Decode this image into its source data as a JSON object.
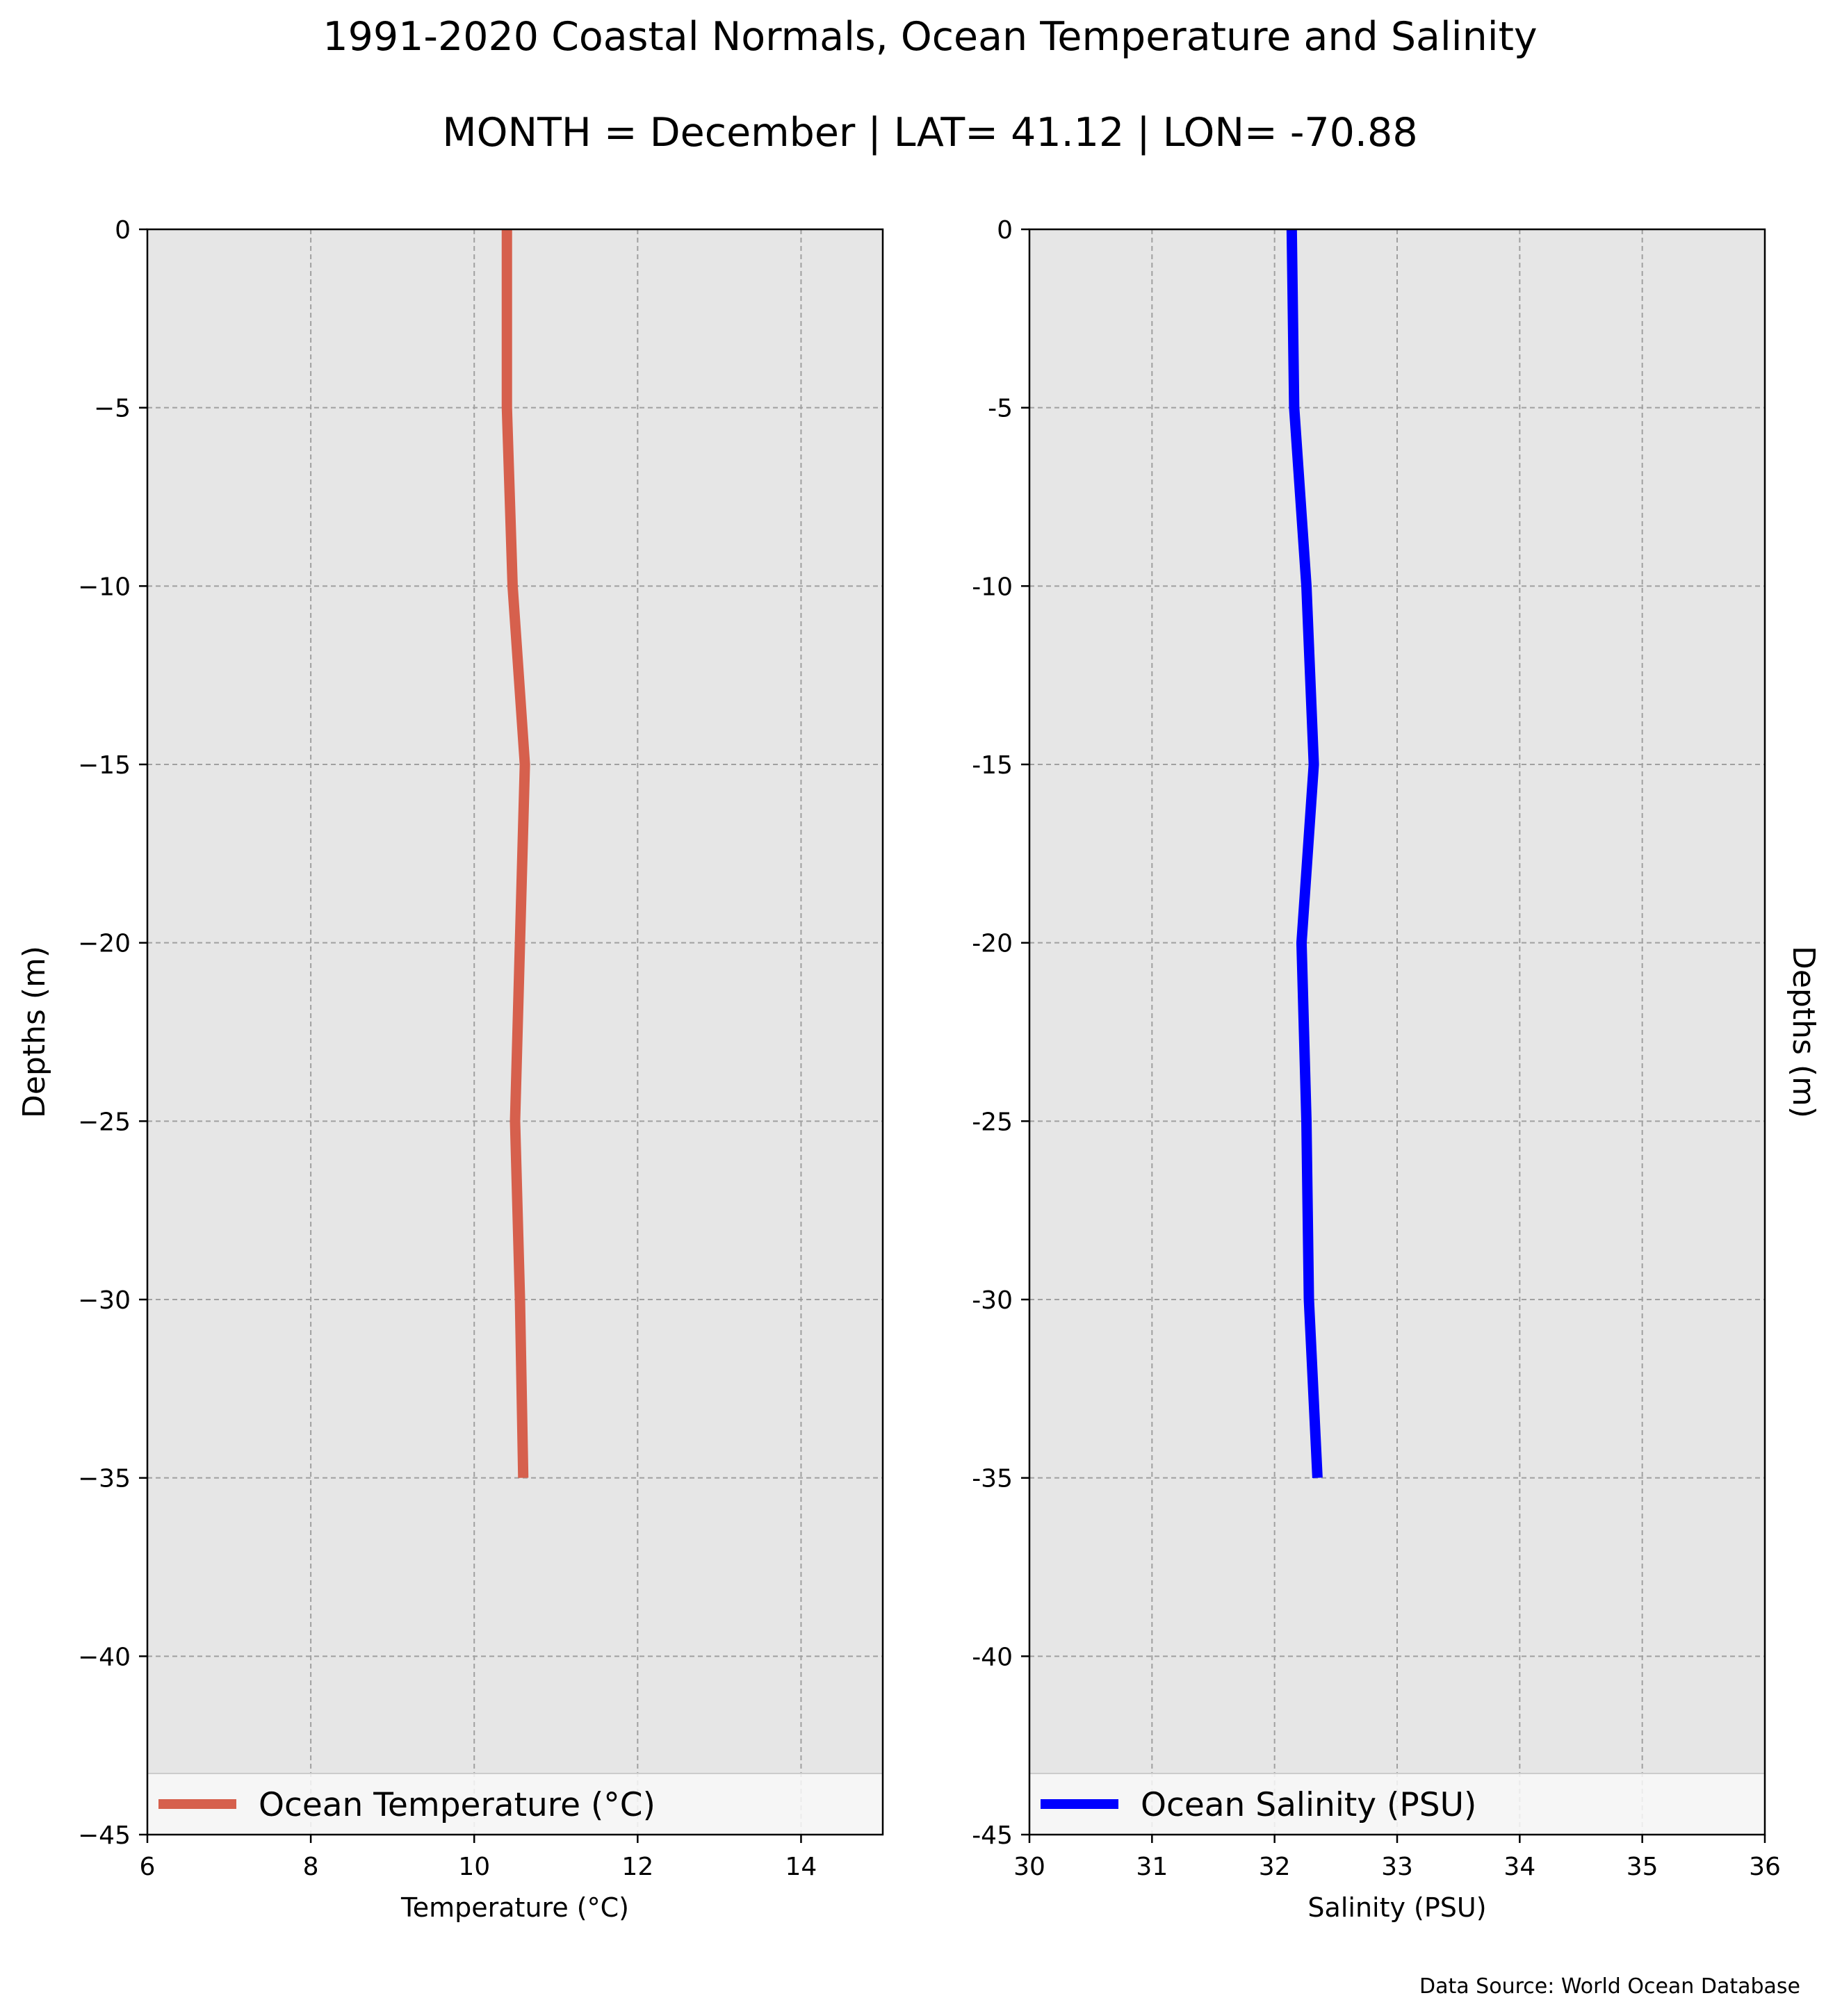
{
  "title": "1991-2020 Coastal Normals, Ocean Temperature and Salinity",
  "subtitle": "MONTH = December | LAT= 41.12 | LON= -70.88",
  "source_note": "Data Source: World Ocean Database",
  "colors": {
    "background": "#ffffff",
    "plot_background": "#e6e6e6",
    "grid": "#a0a0a0",
    "temperature_line": "#d6604d",
    "salinity_line": "#0000ff"
  },
  "chart_data": [
    {
      "type": "line",
      "xlabel": "Temperature ($^\\circ$C)",
      "xlabel_display": "Temperature (°C)",
      "ylabel": "Depths (m)",
      "xlim": [
        6,
        15
      ],
      "ylim": [
        -45,
        0
      ],
      "xticks": [
        6,
        8,
        10,
        12,
        14
      ],
      "xtick_labels": [
        "6",
        "8",
        "10",
        "12",
        "14"
      ],
      "yticks": [
        0,
        -5,
        -10,
        -15,
        -20,
        -25,
        -30,
        -35,
        -40,
        -45
      ],
      "ytick_labels": [
        "0",
        "−5",
        "−10",
        "−15",
        "−20",
        "−25",
        "−30",
        "−35",
        "−40",
        "−45"
      ],
      "grid": true,
      "legend_position": "bottom",
      "series": [
        {
          "name": "Ocean Temperature (°C)",
          "color": "#d6604d",
          "x": [
            10.4,
            10.4,
            10.47,
            10.62,
            10.56,
            10.5,
            10.56,
            10.6
          ],
          "y": [
            0,
            -5,
            -10,
            -15,
            -20,
            -25,
            -30,
            -35
          ]
        }
      ]
    },
    {
      "type": "line",
      "xlabel": "Salinity (PSU)",
      "ylabel": "Depths (m)",
      "ylabel_position": "right",
      "xlim": [
        30,
        36
      ],
      "ylim": [
        -45,
        0
      ],
      "xticks": [
        30,
        31,
        32,
        33,
        34,
        35,
        36
      ],
      "xtick_labels": [
        "30",
        "31",
        "32",
        "33",
        "34",
        "35",
        "36"
      ],
      "yticks": [
        0,
        -5,
        -10,
        -15,
        -20,
        -25,
        -30,
        -35,
        -40,
        -45
      ],
      "ytick_labels": [
        "0",
        "-5",
        "-10",
        "-15",
        "-20",
        "-25",
        "-30",
        "-35",
        "-40",
        "-45"
      ],
      "grid": true,
      "legend_position": "bottom",
      "series": [
        {
          "name": "Ocean Salinity (PSU)",
          "color": "#0000ff",
          "x": [
            32.14,
            32.16,
            32.26,
            32.32,
            32.22,
            32.26,
            32.28,
            32.35
          ],
          "y": [
            0,
            -5,
            -10,
            -15,
            -20,
            -25,
            -30,
            -35
          ]
        }
      ]
    }
  ]
}
